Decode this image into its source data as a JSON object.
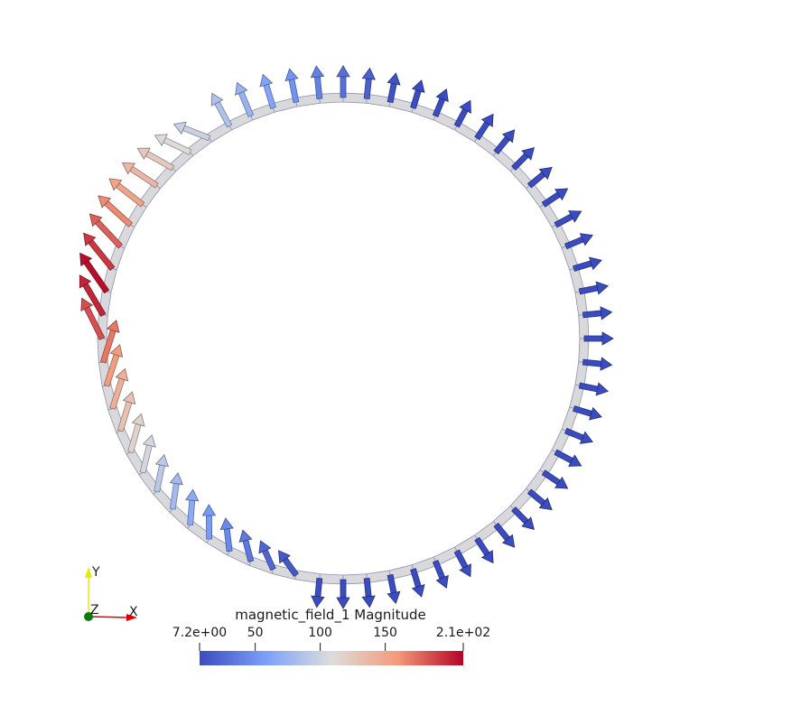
{
  "colorbar": {
    "title": "magnetic_field_1 Magnitude",
    "min_label": "7.2e+00",
    "max_label": "2.1e+02",
    "ticks": [
      {
        "label": "7.2e+00",
        "value": 7.2
      },
      {
        "label": "50",
        "value": 50
      },
      {
        "label": "100",
        "value": 100
      },
      {
        "label": "150",
        "value": 150
      },
      {
        "label": "2.1e+02",
        "value": 210
      }
    ],
    "range": [
      7.2,
      210
    ],
    "colors": [
      "#3b4cc0",
      "#dddddd",
      "#b40426"
    ]
  },
  "orientation_axes": {
    "y_label": "Y",
    "z_label": "Z",
    "x_label": "X",
    "y_color": "#e8e800",
    "x_color": "#e00000",
    "z_color": "#0a7a0a"
  },
  "ring": {
    "fill": "#d9d9dc",
    "edge": "#3a3fa0",
    "segments": 64
  }
}
